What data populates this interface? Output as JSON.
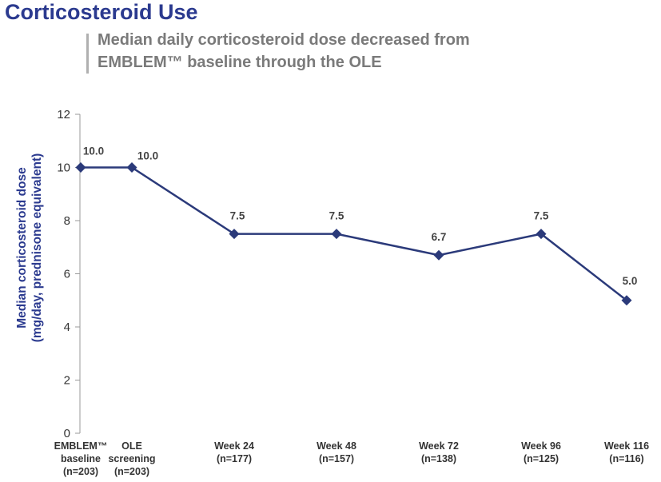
{
  "header": {
    "title": "Corticosteroid Use",
    "subtitle_line1": "Median daily corticosteroid dose decreased from",
    "subtitle_line2": "EMBLEM™ baseline through the OLE"
  },
  "chart_data": {
    "type": "line",
    "ylabel_line1": "Median corticosteroid dose",
    "ylabel_line2": "(mg/day, prednisone equivalent)",
    "ylim": [
      0,
      12
    ],
    "yticks": [
      0,
      2,
      4,
      6,
      8,
      10,
      12
    ],
    "grid": false,
    "categories": [
      [
        "EMBLEM™",
        "baseline",
        "(n=203)"
      ],
      [
        "OLE",
        "screening",
        "(n=203)"
      ],
      [
        "Week 24",
        "(n=177)"
      ],
      [
        "Week 48",
        "(n=157)"
      ],
      [
        "Week 72",
        "(n=138)"
      ],
      [
        "Week 96",
        "(n=125)"
      ],
      [
        "Week 116",
        "(n=116)"
      ]
    ],
    "x_weeks": [
      -1,
      0,
      24,
      48,
      72,
      96,
      116
    ],
    "values": [
      10.0,
      10.0,
      7.5,
      7.5,
      6.7,
      7.5,
      5.0
    ],
    "data_labels": [
      "10.0",
      "10.0",
      "7.5",
      "7.5",
      "6.7",
      "7.5",
      "5.0"
    ],
    "line_color": "#2b3a7a"
  }
}
